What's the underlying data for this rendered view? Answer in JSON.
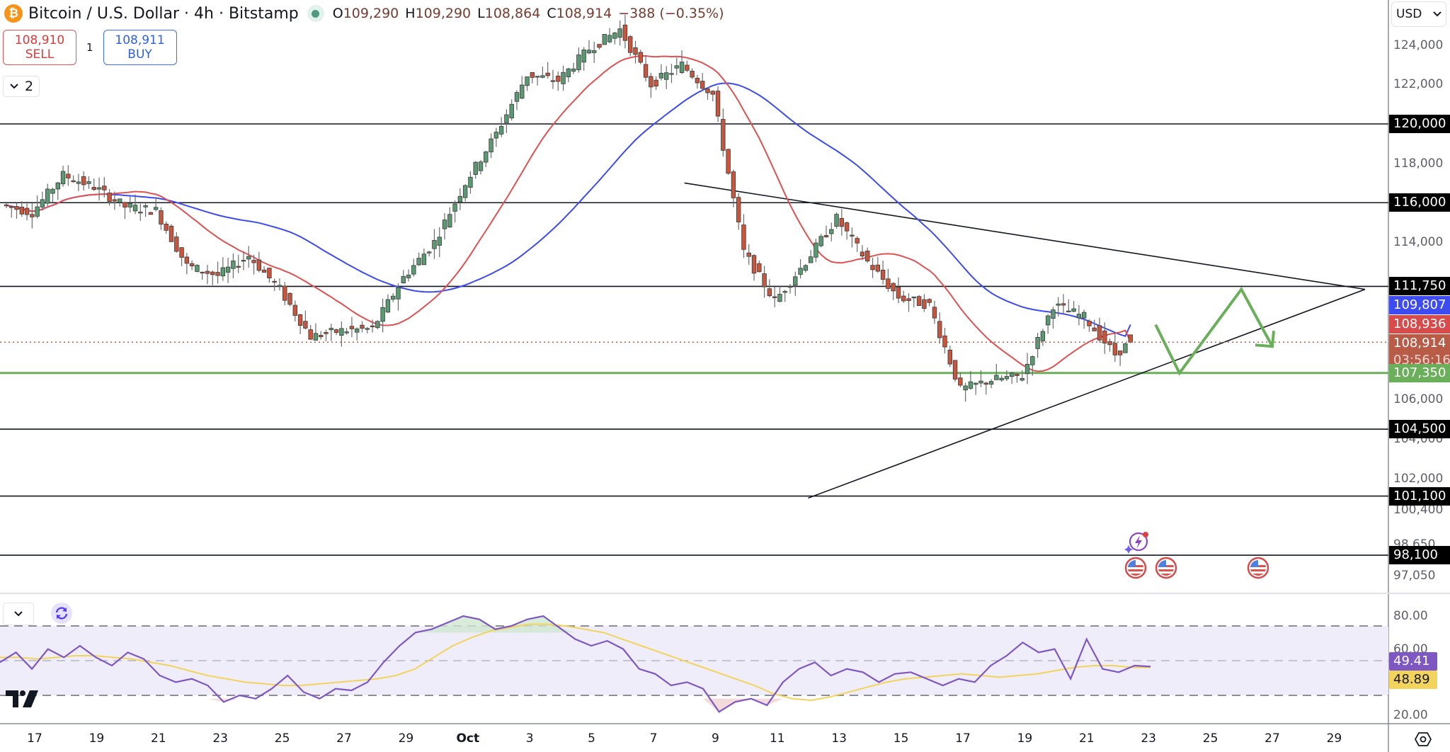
{
  "header": {
    "symbol_icon": "bitcoin-icon",
    "title": "Bitcoin / U.S. Dollar · 4h · Bitstamp",
    "market_status": "open",
    "ohlc": {
      "o_label": "O",
      "o": "109,290",
      "h_label": "H",
      "h": "109,290",
      "l_label": "L",
      "l": "108,864",
      "c_label": "C",
      "c": "108,914",
      "change": "−388 (−0.35%)"
    }
  },
  "trade": {
    "sell_price": "108,910",
    "sell_label": "SELL",
    "spread": "1",
    "buy_price": "108,911",
    "buy_label": "BUY"
  },
  "legend_toggle": {
    "icon": "chevron-down-icon",
    "count": "2"
  },
  "currency": {
    "selected": "USD"
  },
  "price_axis": {
    "ticks": [
      "124,000",
      "122,000",
      "118,000",
      "114,000",
      "106,000",
      "104,000",
      "102,000",
      "100,400",
      "98,650",
      "97,050"
    ],
    "tags": [
      {
        "label": "120,000",
        "kind": "level"
      },
      {
        "label": "116,000",
        "kind": "level"
      },
      {
        "label": "111,750",
        "kind": "level"
      },
      {
        "label": "109,807",
        "kind": "ma-slow"
      },
      {
        "label": "108,936",
        "kind": "ma-fast"
      },
      {
        "label": "108,914",
        "kind": "last-price"
      },
      {
        "label": "03:56:16",
        "kind": "countdown"
      },
      {
        "label": "107,350",
        "kind": "support"
      },
      {
        "label": "104,500",
        "kind": "level"
      },
      {
        "label": "101,100",
        "kind": "level"
      },
      {
        "label": "98,100",
        "kind": "level"
      }
    ]
  },
  "rsi_axis": {
    "ticks": [
      "80.00",
      "60.00",
      "20.00"
    ],
    "rsi_value": "49.41",
    "rsi_ma_value": "48.89"
  },
  "time_axis": {
    "labels": [
      "17",
      "19",
      "21",
      "23",
      "25",
      "27",
      "29",
      "Oct",
      "3",
      "5",
      "7",
      "9",
      "11",
      "13",
      "15",
      "17",
      "19",
      "21",
      "23",
      "25",
      "27",
      "29"
    ]
  },
  "colors": {
    "up": "#5a9a72",
    "down": "#c8553d",
    "ma_fast": "#e05252",
    "ma_slow": "#3d4bf2",
    "support": "#6aaf5a",
    "rsi": "#7e57c2",
    "rsi_ma": "#f2d45c",
    "last_price": "#b85c48"
  },
  "events": [
    {
      "icon": "earnings-lightning-icon",
      "date": "Oct 23"
    },
    {
      "icon": "us-flag-icon",
      "date": "Oct 23"
    },
    {
      "icon": "us-flag-icon",
      "date": "Oct 24"
    },
    {
      "icon": "us-flag-icon",
      "date": "Oct 27"
    }
  ],
  "chart_data": [
    {
      "type": "candlestick",
      "title": "Bitcoin / U.S. Dollar · 4h · Bitstamp",
      "xlabel": "",
      "ylabel": "USD",
      "x_range": [
        "Sep 16",
        "Oct 30"
      ],
      "ylim": [
        96500,
        126000
      ],
      "grid": false,
      "last": {
        "open": 109290,
        "high": 109290,
        "low": 108864,
        "close": 108914,
        "change": -388,
        "change_pct": -0.35
      },
      "approx_closes_daily": [
        {
          "date": "Sep 17",
          "close": 115500
        },
        {
          "date": "Sep 18",
          "close": 117400
        },
        {
          "date": "Sep 19",
          "close": 116800
        },
        {
          "date": "Sep 20",
          "close": 115800
        },
        {
          "date": "Sep 21",
          "close": 115600
        },
        {
          "date": "Sep 22",
          "close": 112800
        },
        {
          "date": "Sep 23",
          "close": 112300
        },
        {
          "date": "Sep 24",
          "close": 113300
        },
        {
          "date": "Sep 25",
          "close": 111600
        },
        {
          "date": "Sep 26",
          "close": 109200
        },
        {
          "date": "Sep 27",
          "close": 109500
        },
        {
          "date": "Sep 28",
          "close": 109600
        },
        {
          "date": "Sep 29",
          "close": 112200
        },
        {
          "date": "Sep 30",
          "close": 114000
        },
        {
          "date": "Oct 1",
          "close": 117000
        },
        {
          "date": "Oct 2",
          "close": 119500
        },
        {
          "date": "Oct 3",
          "close": 122500
        },
        {
          "date": "Oct 4",
          "close": 122200
        },
        {
          "date": "Oct 5",
          "close": 123800
        },
        {
          "date": "Oct 6",
          "close": 124800
        },
        {
          "date": "Oct 7",
          "close": 122000
        },
        {
          "date": "Oct 8",
          "close": 123000
        },
        {
          "date": "Oct 9",
          "close": 121500
        },
        {
          "date": "Oct 10",
          "close": 113500
        },
        {
          "date": "Oct 11",
          "close": 111000
        },
        {
          "date": "Oct 12",
          "close": 113000
        },
        {
          "date": "Oct 13",
          "close": 115200
        },
        {
          "date": "Oct 14",
          "close": 113000
        },
        {
          "date": "Oct 15",
          "close": 111200
        },
        {
          "date": "Oct 16",
          "close": 110800
        },
        {
          "date": "Oct 17",
          "close": 106500
        },
        {
          "date": "Oct 18",
          "close": 107000
        },
        {
          "date": "Oct 19",
          "close": 107200
        },
        {
          "date": "Oct 20",
          "close": 110800
        },
        {
          "date": "Oct 21",
          "close": 110200
        },
        {
          "date": "Oct 22",
          "close": 108300
        },
        {
          "date": "Oct 23",
          "close": 108914
        }
      ],
      "moving_averages": [
        {
          "name": "MA fast (red)",
          "last": 108936
        },
        {
          "name": "MA slow (blue)",
          "last": 109807
        }
      ],
      "horizontal_levels": [
        120000,
        116000,
        111750,
        107350,
        104500,
        101100,
        98100
      ],
      "support_level": 107350,
      "trendlines": [
        {
          "name": "descending resistance",
          "from": {
            "date": "Oct 8",
            "price": 117000
          },
          "to": {
            "date": "Oct 30",
            "price": 111600
          }
        },
        {
          "name": "ascending support",
          "from": {
            "date": "Oct 12",
            "price": 101000
          },
          "to": {
            "date": "Oct 30",
            "price": 111600
          }
        }
      ],
      "projection_path": [
        {
          "date": "Oct 23",
          "price": 109800
        },
        {
          "date": "Oct 24",
          "price": 107350
        },
        {
          "date": "Oct 26",
          "price": 111600
        },
        {
          "date": "Oct 27",
          "price": 108700
        }
      ],
      "annotations": [
        "green zigzag projected path with arrow toward ascending trendline"
      ]
    },
    {
      "type": "line",
      "title": "RSI",
      "ylim": [
        10,
        90
      ],
      "bands": {
        "upper": 70,
        "middle": 50,
        "lower": 30
      },
      "y_ticks": [
        80,
        60,
        20
      ],
      "series": [
        {
          "name": "RSI",
          "last": 49.41,
          "approx_values": [
            52,
            58,
            48,
            60,
            55,
            62,
            55,
            50,
            58,
            54,
            44,
            40,
            42,
            38,
            28,
            32,
            30,
            36,
            44,
            34,
            30,
            36,
            35,
            40,
            52,
            62,
            70,
            72,
            76,
            80,
            78,
            72,
            74,
            78,
            80,
            73,
            66,
            62,
            65,
            60,
            48,
            45,
            38,
            40,
            36,
            22,
            28,
            30,
            26,
            40,
            48,
            52,
            44,
            48,
            46,
            40,
            45,
            46,
            42,
            38,
            42,
            40,
            50,
            56,
            64,
            58,
            60,
            42,
            66,
            48,
            46,
            50,
            49.41
          ]
        },
        {
          "name": "RSI MA",
          "last": 48.89,
          "approx_values": [
            55,
            55,
            54,
            55,
            56,
            56,
            55,
            54,
            52,
            50,
            47,
            44,
            42,
            40,
            39,
            38,
            38,
            39,
            40,
            41,
            42,
            44,
            48,
            55,
            62,
            67,
            71,
            73,
            75,
            75,
            74,
            72,
            70,
            66,
            62,
            58,
            54,
            50,
            46,
            42,
            38,
            33,
            30,
            29,
            31,
            34,
            37,
            40,
            42,
            43,
            44,
            45,
            44,
            43,
            44,
            45,
            47,
            49,
            50,
            50,
            49,
            48.89
          ]
        }
      ]
    }
  ]
}
